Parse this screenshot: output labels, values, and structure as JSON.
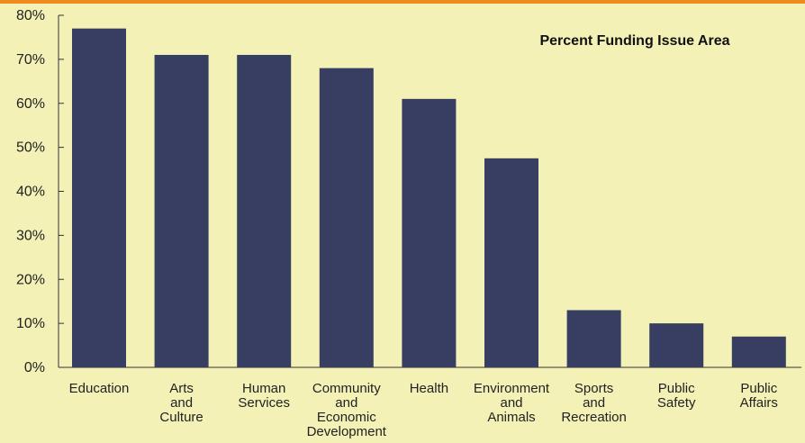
{
  "colors": {
    "background": "#f3f1b5",
    "bar": "#383e62",
    "accent_top": "#f08a1c",
    "axis": "#333333"
  },
  "chart_data": {
    "type": "bar",
    "title": "Percent Funding Issue Area",
    "categories": [
      [
        "Education"
      ],
      [
        "Arts",
        "and",
        "Culture"
      ],
      [
        "Human",
        "Services"
      ],
      [
        "Community",
        "and",
        "Economic",
        "Development"
      ],
      [
        "Health"
      ],
      [
        "Environment",
        "and",
        "Animals"
      ],
      [
        "Sports",
        "and",
        "Recreation"
      ],
      [
        "Public",
        "Safety"
      ],
      [
        "Public",
        "Affairs"
      ]
    ],
    "values": [
      77,
      71,
      71,
      68,
      61,
      47.5,
      13,
      10,
      7
    ],
    "ylim": [
      0,
      80
    ],
    "yticks": [
      "0%",
      "10%",
      "20%",
      "30%",
      "40%",
      "50%",
      "60%",
      "70%",
      "80%"
    ],
    "xlabel": "",
    "ylabel": "",
    "grid": false
  }
}
